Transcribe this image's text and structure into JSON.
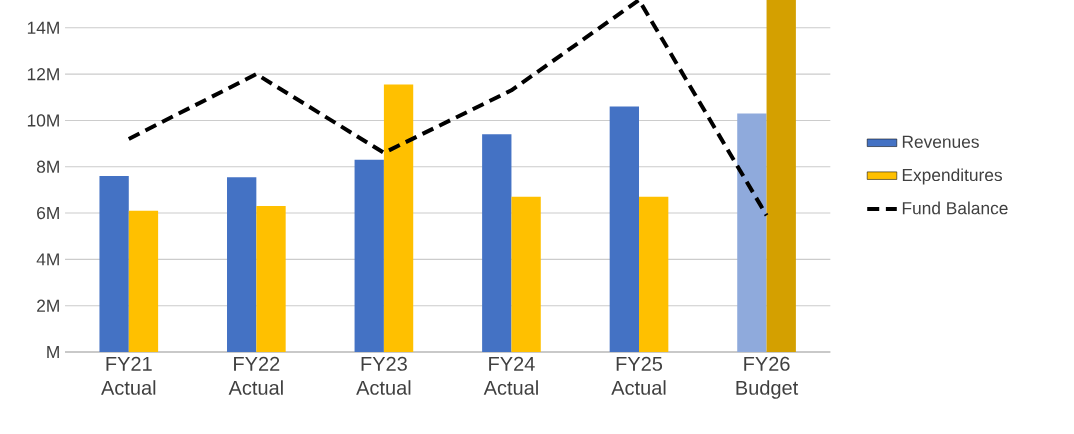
{
  "chart_data": {
    "type": "bar",
    "categories": [
      "FY21 Actual",
      "FY22 Actual",
      "FY23 Actual",
      "FY24 Actual",
      "FY25 Actual",
      "FY26 Budget"
    ],
    "series": [
      {
        "name": "Revenues",
        "color": "#4472c4",
        "colors": [
          "#4472c4",
          "#4472c4",
          "#4472c4",
          "#4472c4",
          "#4472c4",
          "#8faadc"
        ],
        "values": [
          7.6,
          7.55,
          8.3,
          9.4,
          10.6,
          10.3
        ]
      },
      {
        "name": "Expenditures",
        "color": "#ffc000",
        "colors": [
          "#ffc000",
          "#ffc000",
          "#ffc000",
          "#ffc000",
          "#ffc000",
          "#d4a000"
        ],
        "values": [
          6.1,
          6.3,
          11.55,
          6.7,
          6.7,
          15.2
        ]
      },
      {
        "name": "Fund Balance",
        "type": "line",
        "color": "#000000",
        "line_style": "dashed",
        "values": [
          9.2,
          12.0,
          8.6,
          11.3,
          15.2,
          5.9
        ]
      }
    ],
    "ylim": [
      0,
      15.2
    ],
    "yticks": [
      {
        "value": 0,
        "label": "M"
      },
      {
        "value": 2,
        "label": "2M"
      },
      {
        "value": 4,
        "label": "4M"
      },
      {
        "value": 6,
        "label": "6M"
      },
      {
        "value": 8,
        "label": "8M"
      },
      {
        "value": 10,
        "label": "10M"
      },
      {
        "value": 12,
        "label": "12M"
      },
      {
        "value": 14,
        "label": "14M"
      }
    ],
    "grid": "y",
    "legend": "right",
    "marker": "none"
  }
}
